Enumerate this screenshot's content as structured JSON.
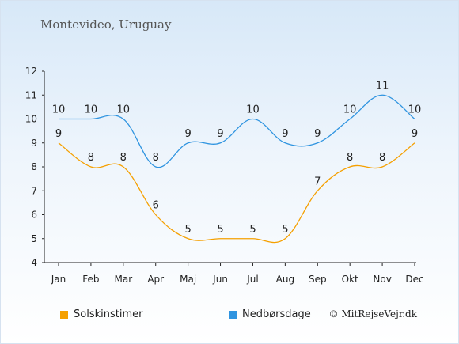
{
  "header": {
    "title": "Montevideo, Uruguay"
  },
  "credit": "© MitRejseVejr.dk",
  "chart_data": {
    "type": "line",
    "categories": [
      "Jan",
      "Feb",
      "Mar",
      "Apr",
      "Maj",
      "Jun",
      "Jul",
      "Aug",
      "Sep",
      "Okt",
      "Nov",
      "Dec"
    ],
    "ylim": [
      4,
      12
    ],
    "yticks": [
      4,
      5,
      6,
      7,
      8,
      9,
      10,
      11,
      12
    ],
    "grid": false,
    "legend_position": "bottom",
    "series": [
      {
        "name": "Solskinstimer",
        "color": "#f5a000",
        "values": [
          9,
          8,
          8,
          6,
          5,
          5,
          5,
          5,
          7,
          8,
          8,
          9
        ]
      },
      {
        "name": "Nedbørsdage",
        "color": "#2f94e0",
        "values": [
          10,
          10,
          10,
          8,
          9,
          9,
          10,
          9,
          9,
          10,
          11,
          10
        ]
      }
    ]
  }
}
